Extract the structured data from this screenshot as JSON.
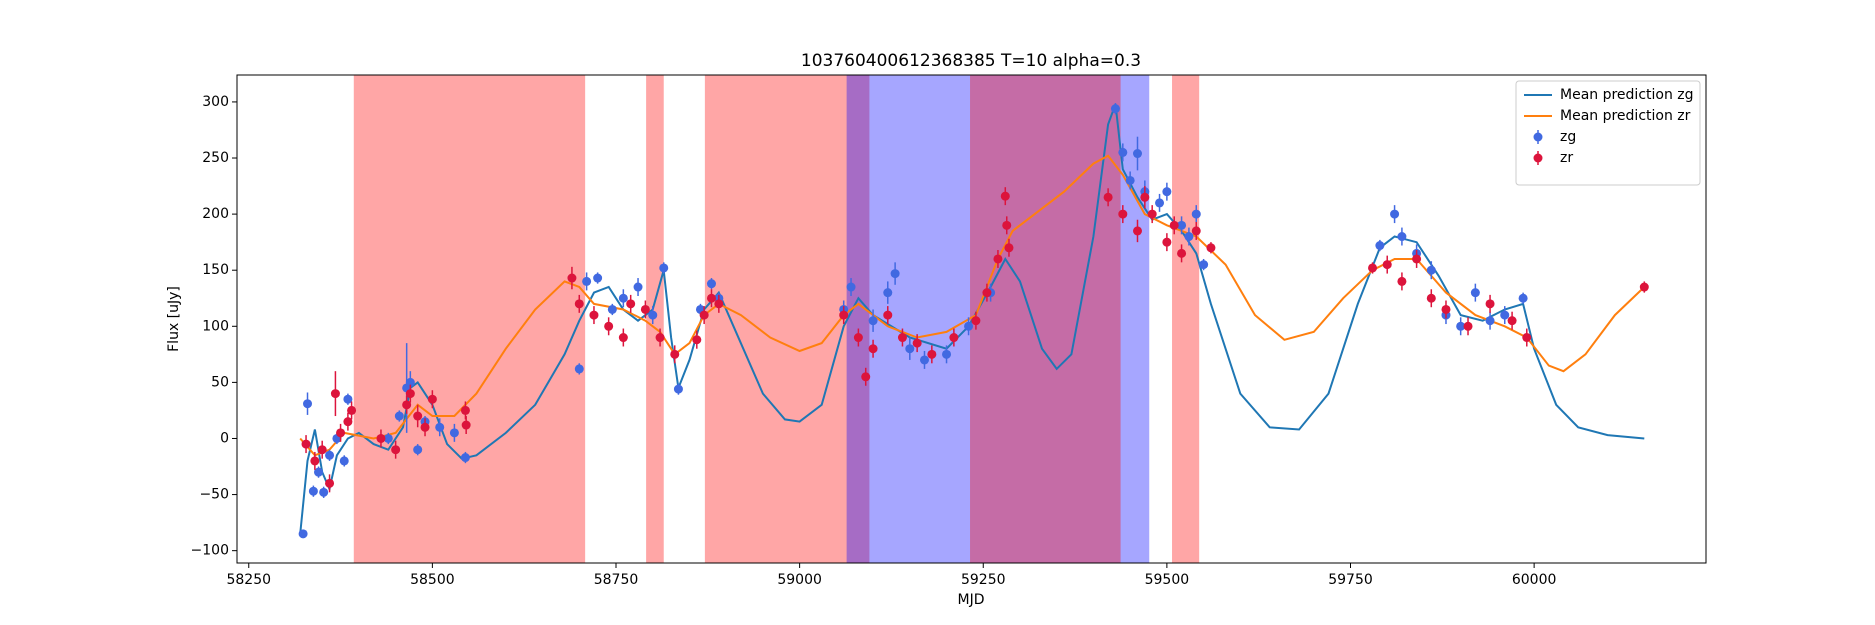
{
  "chart_data": {
    "type": "line",
    "title": "103760400612368385 T=10 alpha=0.3",
    "x_label": "MJD",
    "y_label": "Flux [uJy]",
    "xlim": [
      58234,
      60234
    ],
    "ylim": [
      -111,
      324
    ],
    "xticks": [
      58250,
      58500,
      58750,
      59000,
      59250,
      59500,
      59750,
      60000
    ],
    "yticks": [
      {
        "value": -100,
        "label": "−100"
      },
      {
        "value": -50,
        "label": "−50"
      },
      0,
      50,
      100,
      150,
      200,
      250,
      300
    ],
    "grid": false,
    "legend": "upper right",
    "spans": [
      {
        "x": [
          58393,
          58708
        ],
        "color": "#ff0000"
      },
      {
        "x": [
          58791,
          58815
        ],
        "color": "#ff0000"
      },
      {
        "x": [
          58871,
          59095
        ],
        "color": "#ff0000"
      },
      {
        "x": [
          59064,
          59476
        ],
        "color": "#0000ff"
      },
      {
        "x": [
          59232,
          59437
        ],
        "color": "#ff0000"
      },
      {
        "x": [
          59507,
          59544
        ],
        "color": "#ff0000"
      }
    ],
    "series": [
      {
        "name": "Mean prediction zg",
        "type": "line",
        "color": "#1f77b4",
        "x": [
          58320,
          58330,
          58340,
          58350,
          58360,
          58370,
          58385,
          58400,
          58420,
          58440,
          58460,
          58470,
          58480,
          58500,
          58520,
          58540,
          58560,
          58600,
          58640,
          58680,
          58700,
          58720,
          58740,
          58760,
          58780,
          58800,
          58815,
          58825,
          58835,
          58850,
          58870,
          58890,
          58910,
          58950,
          58980,
          59000,
          59030,
          59060,
          59080,
          59100,
          59150,
          59200,
          59230,
          59260,
          59280,
          59300,
          59330,
          59350,
          59370,
          59400,
          59420,
          59430,
          59440,
          59460,
          59480,
          59500,
          59520,
          59540,
          59560,
          59600,
          59640,
          59680,
          59720,
          59760,
          59790,
          59810,
          59840,
          59870,
          59900,
          59930,
          59960,
          59985,
          60000,
          60030,
          60060,
          60100,
          60150
        ],
        "values": [
          -85,
          -20,
          8,
          -30,
          -45,
          -15,
          0,
          5,
          -5,
          -10,
          10,
          45,
          50,
          30,
          -5,
          -18,
          -15,
          5,
          30,
          75,
          105,
          130,
          135,
          115,
          105,
          115,
          150,
          90,
          45,
          70,
          115,
          130,
          100,
          40,
          17,
          15,
          30,
          100,
          125,
          110,
          90,
          80,
          100,
          135,
          160,
          140,
          80,
          62,
          75,
          180,
          280,
          298,
          240,
          215,
          195,
          200,
          185,
          165,
          120,
          40,
          10,
          8,
          40,
          120,
          170,
          180,
          175,
          145,
          110,
          105,
          115,
          120,
          80,
          30,
          10,
          3,
          0
        ]
      },
      {
        "name": "Mean prediction zr",
        "type": "line",
        "color": "#ff7f0e",
        "x": [
          58320,
          58340,
          58360,
          58380,
          58420,
          58450,
          58480,
          58500,
          58530,
          58560,
          58600,
          58640,
          58680,
          58700,
          58720,
          58760,
          58790,
          58810,
          58830,
          58850,
          58870,
          58890,
          58920,
          58960,
          59000,
          59030,
          59060,
          59080,
          59120,
          59160,
          59200,
          59240,
          59270,
          59290,
          59320,
          59360,
          59400,
          59420,
          59440,
          59470,
          59500,
          59540,
          59580,
          59620,
          59660,
          59700,
          59740,
          59780,
          59810,
          59840,
          59880,
          59920,
          59960,
          59990,
          60020,
          60040,
          60070,
          60110,
          60150
        ],
        "values": [
          0,
          -15,
          -10,
          5,
          0,
          5,
          30,
          20,
          20,
          40,
          80,
          115,
          140,
          135,
          120,
          115,
          105,
          95,
          75,
          85,
          110,
          120,
          110,
          90,
          78,
          85,
          110,
          120,
          100,
          90,
          95,
          110,
          160,
          185,
          200,
          220,
          245,
          252,
          235,
          200,
          190,
          180,
          155,
          110,
          88,
          95,
          125,
          150,
          160,
          160,
          130,
          110,
          100,
          90,
          65,
          60,
          75,
          110,
          135
        ]
      },
      {
        "name": "zg",
        "type": "scatter",
        "color": "#4169e1",
        "x": [
          58324,
          58330,
          58338,
          58345,
          58352,
          58360,
          58370,
          58380,
          58385,
          58440,
          58455,
          58465,
          58470,
          58480,
          58490,
          58510,
          58530,
          58545,
          58700,
          58710,
          58725,
          58745,
          58760,
          58780,
          58800,
          58815,
          58835,
          58865,
          58880,
          58890,
          59060,
          59070,
          59100,
          59120,
          59130,
          59150,
          59170,
          59200,
          59230,
          59260,
          59430,
          59440,
          59450,
          59460,
          59470,
          59490,
          59500,
          59520,
          59530,
          59540,
          59550,
          59790,
          59810,
          59820,
          59840,
          59860,
          59880,
          59900,
          59920,
          59940,
          59960,
          59985
        ],
        "values": [
          -85,
          31,
          -47,
          -30,
          -48,
          -15,
          0,
          -20,
          35,
          0,
          20,
          45,
          50,
          -10,
          15,
          10,
          5,
          -17,
          62,
          140,
          143,
          115,
          125,
          135,
          110,
          152,
          44,
          115,
          138,
          125,
          115,
          135,
          105,
          130,
          147,
          80,
          70,
          75,
          100,
          130,
          294,
          255,
          230,
          254,
          220,
          210,
          220,
          190,
          180,
          200,
          155,
          172,
          200,
          180,
          165,
          150,
          110,
          100,
          130,
          105,
          110,
          125
        ],
        "errors": [
          3,
          10,
          5,
          5,
          5,
          5,
          5,
          5,
          5,
          5,
          5,
          40,
          10,
          5,
          5,
          8,
          8,
          5,
          5,
          8,
          5,
          5,
          8,
          8,
          8,
          5,
          5,
          5,
          5,
          5,
          8,
          8,
          10,
          10,
          10,
          10,
          8,
          8,
          8,
          8,
          5,
          8,
          8,
          15,
          10,
          8,
          8,
          8,
          8,
          8,
          5,
          5,
          8,
          8,
          8,
          8,
          8,
          8,
          8,
          8,
          8,
          5
        ]
      },
      {
        "name": "zr",
        "type": "scatter",
        "color": "#dc143c",
        "x": [
          58328,
          58340,
          58350,
          58360,
          58368,
          58375,
          58385,
          58390,
          58430,
          58450,
          58465,
          58470,
          58480,
          58490,
          58500,
          58545,
          58546,
          58690,
          58700,
          58720,
          58740,
          58760,
          58770,
          58790,
          58810,
          58830,
          58860,
          58870,
          58880,
          58890,
          59060,
          59080,
          59090,
          59100,
          59120,
          59140,
          59160,
          59180,
          59210,
          59240,
          59255,
          59270,
          59280,
          59282,
          59285,
          59420,
          59440,
          59460,
          59470,
          59480,
          59500,
          59510,
          59520,
          59540,
          59560,
          59780,
          59800,
          59820,
          59840,
          59860,
          59880,
          59910,
          59940,
          59970,
          59990,
          60150
        ],
        "values": [
          -5,
          -20,
          -10,
          -40,
          40,
          5,
          15,
          25,
          0,
          -10,
          30,
          40,
          20,
          10,
          35,
          25,
          12,
          143,
          120,
          110,
          100,
          90,
          120,
          115,
          90,
          75,
          88,
          110,
          125,
          120,
          110,
          90,
          55,
          80,
          110,
          90,
          85,
          75,
          90,
          105,
          130,
          160,
          216,
          190,
          170,
          215,
          200,
          185,
          215,
          200,
          175,
          190,
          165,
          185,
          170,
          152,
          155,
          140,
          160,
          125,
          115,
          100,
          120,
          105,
          90,
          135
        ],
        "errors": [
          8,
          8,
          8,
          8,
          20,
          8,
          8,
          8,
          8,
          8,
          8,
          8,
          10,
          8,
          8,
          8,
          8,
          10,
          8,
          8,
          8,
          8,
          8,
          8,
          8,
          8,
          8,
          8,
          8,
          8,
          8,
          8,
          8,
          8,
          8,
          8,
          8,
          8,
          8,
          8,
          8,
          8,
          8,
          8,
          8,
          8,
          8,
          10,
          10,
          8,
          8,
          8,
          8,
          8,
          5,
          5,
          8,
          8,
          8,
          8,
          8,
          8,
          8,
          8,
          8,
          5
        ]
      }
    ]
  }
}
